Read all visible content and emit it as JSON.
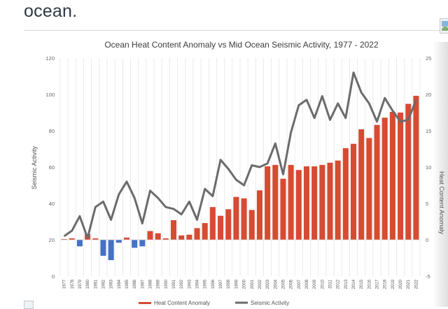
{
  "page": {
    "heading": "ocean."
  },
  "icons": {
    "top_right": "broken-image-icon",
    "bottom_left": "broken-image-icon"
  },
  "chart_data": {
    "type": "bar+line",
    "title": "Ocean Heat Content Anomaly vs Mid Ocean Seismic Activity, 1977 - 2022",
    "ylabel_left": "Seismic Activity",
    "ylabel_right": "Heat Content Anomaly",
    "ylim_left": [
      0,
      120
    ],
    "yticks_left": [
      "0",
      "20",
      "40",
      "60",
      "80",
      "100",
      "120"
    ],
    "ylim_right": [
      -5,
      25
    ],
    "yticks_right": [
      "-5",
      "0",
      "5",
      "10",
      "15",
      "20",
      "25"
    ],
    "grid": "vertical",
    "legend_position": "bottom",
    "colors": {
      "positive_bar": "#d64b32",
      "negative_bar": "#4472c4",
      "line": "#6b6b6b"
    },
    "categories": [
      "1977",
      "1978",
      "1979",
      "1980",
      "1981",
      "1982",
      "1983",
      "1984",
      "1985",
      "1986",
      "1987",
      "1988",
      "1989",
      "1990",
      "1991",
      "1992",
      "1993",
      "1994",
      "1995",
      "1996",
      "1997",
      "1998",
      "1999",
      "2000",
      "2001",
      "2002",
      "2003",
      "2004",
      "2005",
      "2006",
      "2007",
      "2008",
      "2009",
      "2010",
      "2011",
      "2012",
      "2013",
      "2014",
      "2015",
      "2016",
      "2017",
      "2018",
      "2019",
      "2020",
      "2021",
      "2022"
    ],
    "series": [
      {
        "name": "Heat Content Anomaly",
        "axis": "right",
        "kind": "bar",
        "values": [
          0.1,
          0.2,
          -0.9,
          0.8,
          0.2,
          -2.2,
          -2.8,
          -0.4,
          0.3,
          -1.1,
          -0.9,
          1.2,
          0.9,
          0.2,
          2.7,
          0.6,
          0.7,
          1.6,
          2.3,
          4.5,
          3.3,
          4.2,
          5.9,
          5.7,
          4.1,
          6.8,
          10.1,
          10.3,
          8.4,
          10.3,
          9.6,
          10.1,
          10.1,
          10.3,
          10.6,
          10.9,
          12.6,
          13.2,
          15.2,
          14.0,
          15.8,
          16.8,
          17.6,
          17.5,
          18.7,
          19.8
        ]
      },
      {
        "name": "Seismic Activity",
        "axis": "left",
        "kind": "line",
        "values": [
          22,
          25,
          33,
          21,
          38,
          41,
          31,
          45,
          52,
          43,
          29,
          47,
          43,
          38,
          37,
          34,
          41,
          31,
          48,
          44,
          64,
          59,
          53,
          50,
          61,
          60,
          62,
          73,
          56,
          79,
          94,
          97,
          87,
          99,
          86,
          95,
          87,
          112,
          101,
          95,
          85,
          98,
          91,
          85,
          86,
          97
        ]
      }
    ]
  }
}
